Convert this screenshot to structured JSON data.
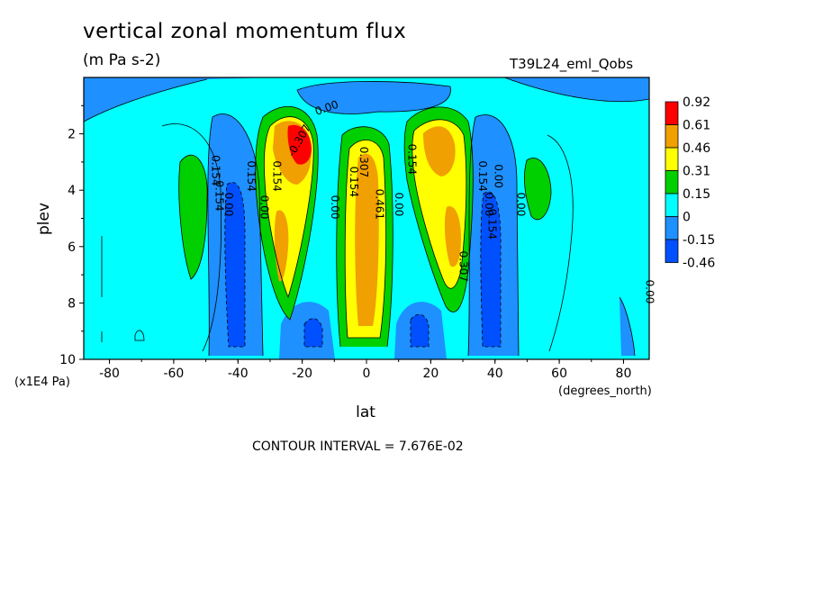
{
  "header": {
    "title": "vertical zonal momentum flux",
    "units": "(m Pa s-2)",
    "run_id": "T39L24_eml_Qobs"
  },
  "footer": {
    "contour_interval": "CONTOUR INTERVAL = 7.676E-02"
  },
  "chart_data": {
    "type": "heatmap",
    "title": "vertical zonal momentum flux",
    "subtitle": "(m Pa s-2)",
    "xlabel": "lat",
    "x_unit_label": "(degrees_north)",
    "ylabel": "plev",
    "y_unit_label": "(x1E4 Pa)",
    "xlim": [
      -88,
      88
    ],
    "ylim": [
      10,
      0
    ],
    "x_ticks": [
      "-80",
      "-60",
      "-40",
      "-20",
      "0",
      "20",
      "40",
      "60",
      "80"
    ],
    "x_tick_values": [
      -80,
      -60,
      -40,
      -20,
      0,
      20,
      40,
      60,
      80
    ],
    "y_ticks": [
      "2",
      "4",
      "6",
      "8",
      "10"
    ],
    "y_tick_values": [
      2,
      4,
      6,
      8,
      10
    ],
    "colorbar": {
      "labels": [
        "0.92",
        "0.61",
        "0.46",
        "0.31",
        "0.15",
        "0",
        "-0.15",
        "-0.46"
      ],
      "colors": [
        "#ff0000",
        "#f0a000",
        "#ffff00",
        "#00d000",
        "#00ffff",
        "#1e90ff",
        "#0050ff"
      ]
    },
    "contour_labels": [
      {
        "text": "0.00",
        "lat": -12,
        "plev": 1.2,
        "rot": -20
      },
      {
        "text": "0.154",
        "lat": -48,
        "plev": 3.3,
        "rot": 90
      },
      {
        "text": "0.154",
        "lat": -37,
        "plev": 3.5,
        "rot": 90
      },
      {
        "text": "0.154",
        "lat": -29,
        "plev": 3.5,
        "rot": 90
      },
      {
        "text": "0.154",
        "lat": -47,
        "plev": 4.2,
        "rot": 90
      },
      {
        "text": "0.00",
        "lat": -44,
        "plev": 4.5,
        "rot": 90
      },
      {
        "text": "0.00",
        "lat": -33,
        "plev": 4.6,
        "rot": 90
      },
      {
        "text": "0.00",
        "lat": -11,
        "plev": 4.6,
        "rot": 90
      },
      {
        "text": "0.154",
        "lat": -5,
        "plev": 3.7,
        "rot": 90
      },
      {
        "text": "0.307",
        "lat": -2,
        "plev": 3.0,
        "rot": 90
      },
      {
        "text": "0.461",
        "lat": 3,
        "plev": 4.5,
        "rot": 90
      },
      {
        "text": "0.00",
        "lat": 9,
        "plev": 4.5,
        "rot": 90
      },
      {
        "text": "0.154",
        "lat": 13,
        "plev": 2.9,
        "rot": 90
      },
      {
        "text": "0.307",
        "lat": 29,
        "plev": 6.7,
        "rot": 90
      },
      {
        "text": "0.154",
        "lat": 35,
        "plev": 3.5,
        "rot": 90
      },
      {
        "text": "0.154",
        "lat": 38,
        "plev": 5.2,
        "rot": 90
      },
      {
        "text": "0.00",
        "lat": 40,
        "plev": 3.5,
        "rot": 90
      },
      {
        "text": "0.00",
        "lat": 37,
        "plev": 4.5,
        "rot": 90
      },
      {
        "text": "0.00",
        "lat": 47,
        "plev": 4.5,
        "rot": 90
      },
      {
        "text": "0.00",
        "lat": 87,
        "plev": 7.6,
        "rot": 90
      },
      {
        "text": "-0.307",
        "lat": -20,
        "plev": 2.3,
        "rot": -60
      }
    ]
  }
}
